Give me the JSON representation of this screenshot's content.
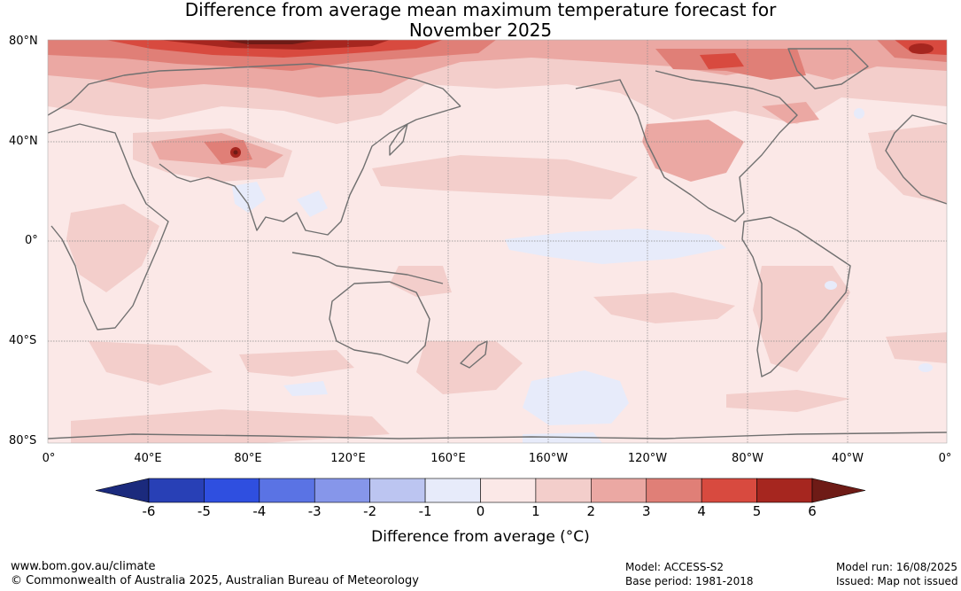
{
  "title_line1": "Difference from average mean maximum temperature forecast for",
  "title_line2": "November 2025",
  "lat_labels": [
    "80°N",
    "40°N",
    "0°",
    "40°S",
    "80°S"
  ],
  "lon_labels": [
    "0°",
    "40°E",
    "80°E",
    "120°E",
    "160°E",
    "160°W",
    "120°W",
    "80°W",
    "40°W",
    "0°"
  ],
  "colorbar": {
    "ticks": [
      "-6",
      "-5",
      "-4",
      "-3",
      "-2",
      "-1",
      "0",
      "1",
      "2",
      "3",
      "4",
      "5",
      "6"
    ],
    "colors": [
      "#1b2a7d",
      "#2840b6",
      "#2f4fe0",
      "#5a73e4",
      "#8696ea",
      "#bcc5f1",
      "#e7ebfa",
      "#fbe8e7",
      "#f3cecb",
      "#eba8a3",
      "#e07f77",
      "#d84a3f",
      "#a6261f",
      "#6e1b16"
    ],
    "label": "Difference from average (°C)"
  },
  "footer": {
    "website": "www.bom.gov.au/climate",
    "copyright": "© Commonwealth of Australia 2025, Australian Bureau of Meteorology",
    "model": "Model: ACCESS-S2",
    "base_period": "Base period: 1981-2018",
    "model_run": "Model run: 16/08/2025",
    "issued": "Issued: Map not issued"
  }
}
